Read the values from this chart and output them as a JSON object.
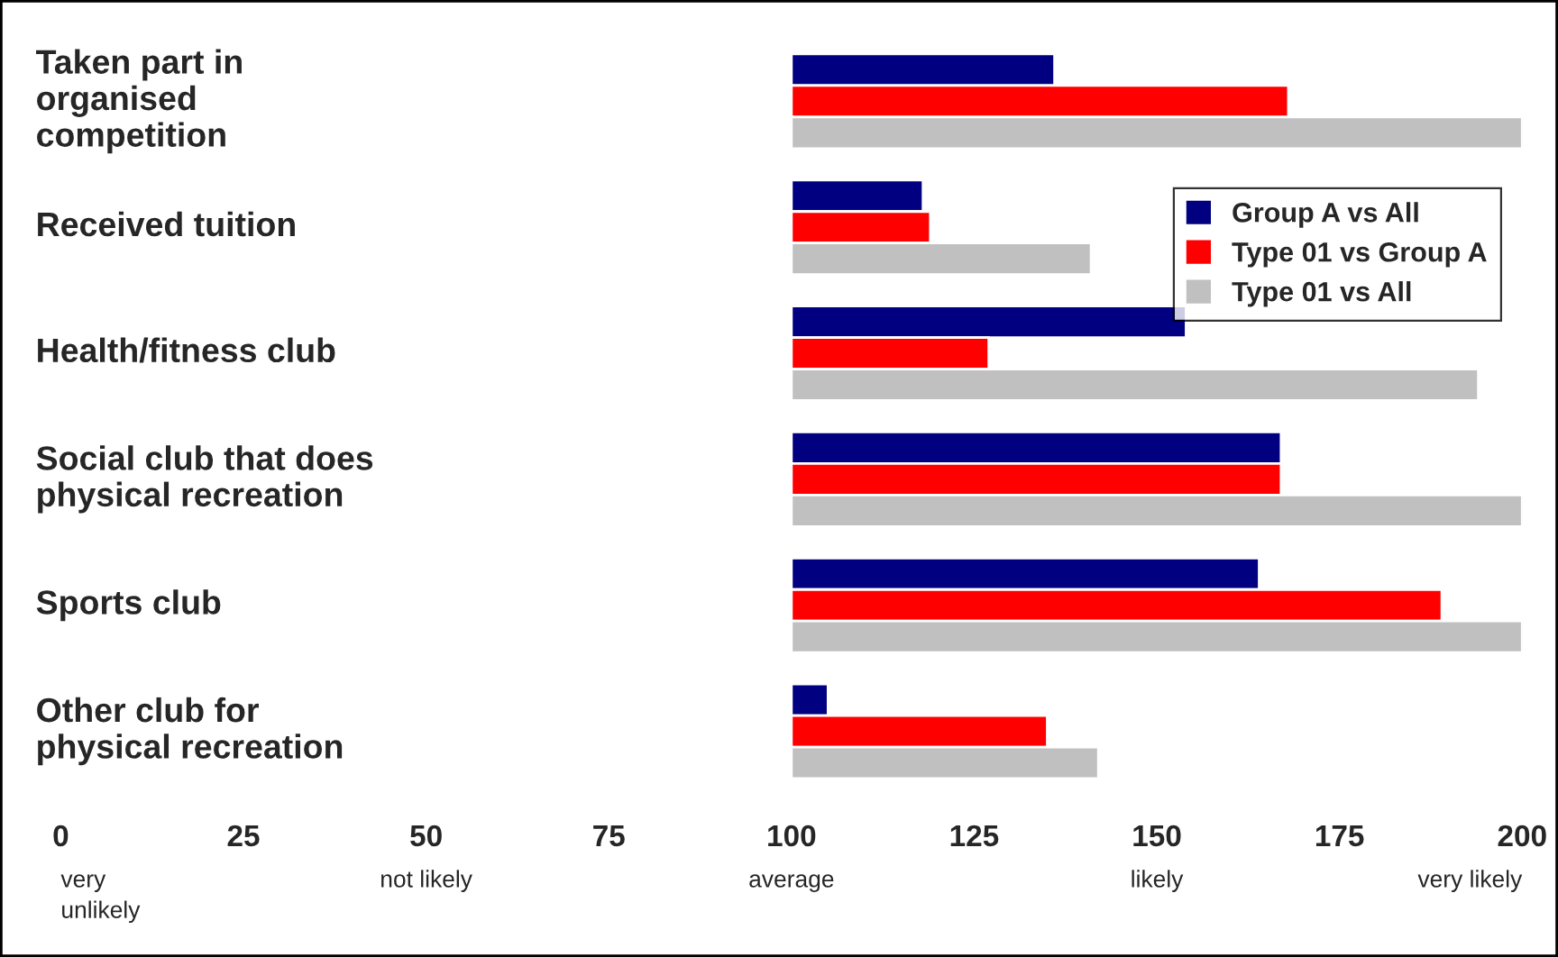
{
  "chart_data": {
    "type": "bar",
    "orientation": "horizontal",
    "categories": [
      "Taken part in\norganised\ncompetition",
      "Received tuition",
      "Health/fitness club",
      "Social club that does\nphysical recreation",
      "Sports club",
      "Other club for\nphysical recreation"
    ],
    "series": [
      {
        "name": "Group A vs All",
        "color": "#000080",
        "base": [
          100,
          100,
          100,
          100,
          100,
          100
        ],
        "values": [
          36,
          18,
          54,
          67,
          64,
          5
        ]
      },
      {
        "name": "Type 01 vs Group A",
        "color": "#ff0000",
        "base": [
          100,
          100,
          100,
          100,
          100,
          100
        ],
        "values": [
          68,
          19,
          27,
          67,
          89,
          35
        ]
      },
      {
        "name": "Type 01 vs All",
        "color": "#c0c0c0",
        "base": [
          100,
          100,
          100,
          100,
          100,
          100
        ],
        "values": [
          100,
          41,
          94,
          100,
          100,
          42
        ]
      }
    ],
    "xlim": [
      0,
      200
    ],
    "xticks": [
      0,
      25,
      50,
      75,
      100,
      125,
      150,
      175,
      200
    ],
    "annotations": [
      "very\nunlikely",
      "not likely",
      "average",
      "likely",
      "very likely"
    ],
    "legend": "top right",
    "grid": false
  }
}
